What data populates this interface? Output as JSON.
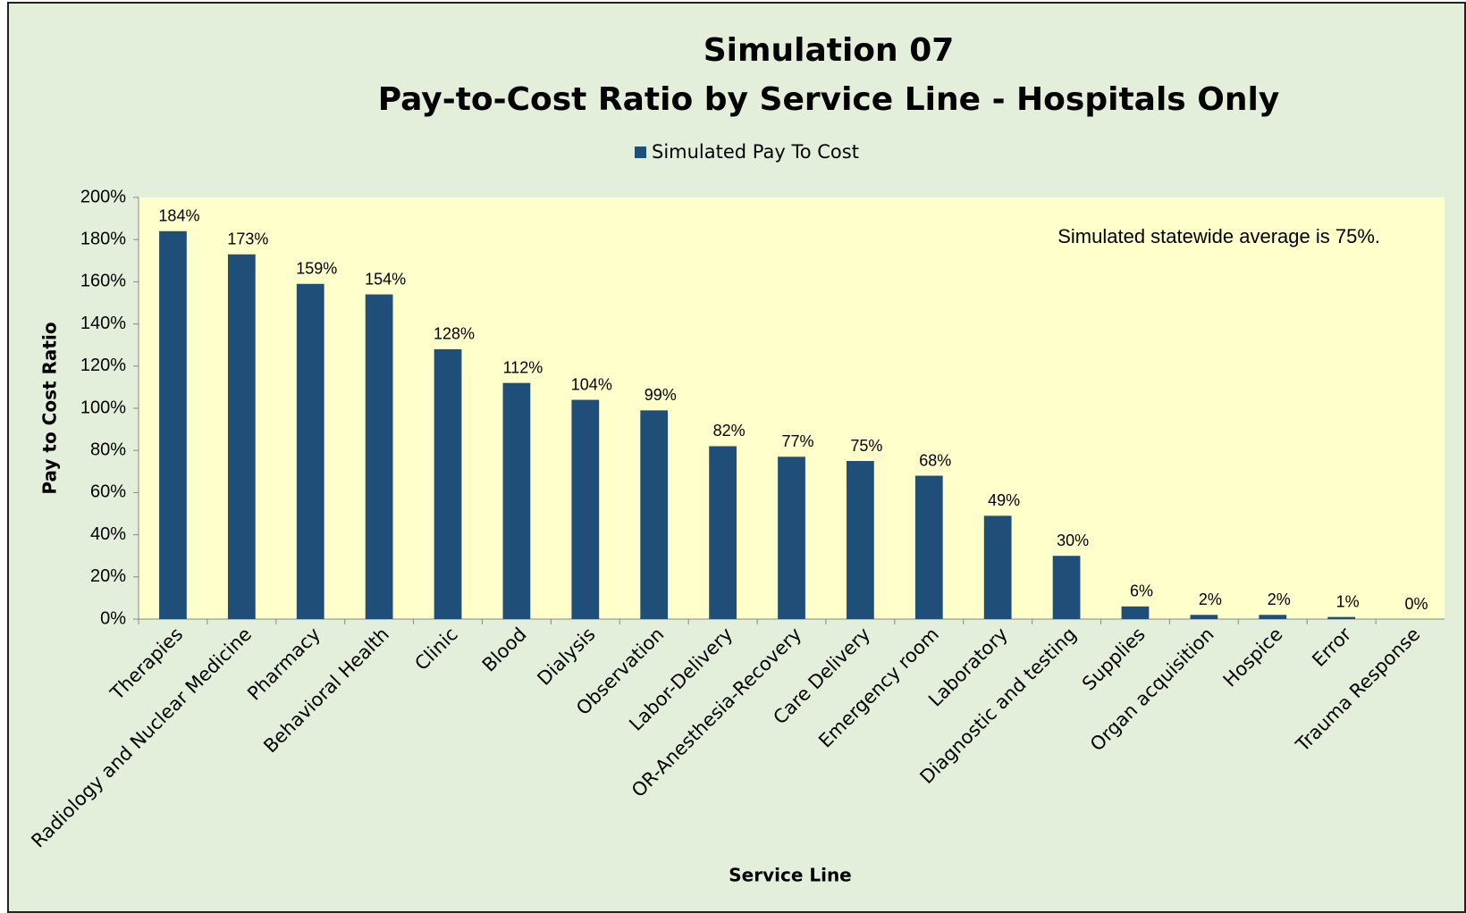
{
  "chart_data": {
    "type": "bar",
    "title": "Simulation 07",
    "subtitle": "Pay-to-Cost Ratio by Service Line - Hospitals Only",
    "x_label": "Service Line",
    "y_label": "Pay to Cost Ratio",
    "annotation": "Simulated statewide average is 75%.",
    "categories": [
      "Therapies",
      "Radiology and Nuclear Medicine",
      "Pharmacy",
      "Behavioral Health",
      "Clinic",
      "Blood",
      "Dialysis",
      "Observation",
      "Labor-Delivery",
      "OR-Anesthesia-Recovery",
      "Care Delivery",
      "Emergency room",
      "Laboratory",
      "Diagnostic and testing",
      "Supplies",
      "Organ acquisition",
      "Hospice",
      "Error",
      "Trauma Response"
    ],
    "series": [
      {
        "name": "Simulated Pay To Cost",
        "color": "#1f4e79",
        "values": [
          184,
          173,
          159,
          154,
          128,
          112,
          104,
          99,
          82,
          77,
          75,
          68,
          49,
          30,
          6,
          2,
          2,
          1,
          0
        ],
        "value_labels": [
          "184%",
          "173%",
          "159%",
          "154%",
          "128%",
          "112%",
          "104%",
          "99%",
          "82%",
          "77%",
          "75%",
          "68%",
          "49%",
          "30%",
          "6%",
          "2%",
          "2%",
          "1%",
          "0%"
        ]
      }
    ],
    "ylim": [
      0,
      200
    ],
    "yticks": [
      {
        "value": 0,
        "label": "0%"
      },
      {
        "value": 20,
        "label": "20%"
      },
      {
        "value": 40,
        "label": "40%"
      },
      {
        "value": 60,
        "label": "60%"
      },
      {
        "value": 80,
        "label": "80%"
      },
      {
        "value": 100,
        "label": "100%"
      },
      {
        "value": 120,
        "label": "120%"
      },
      {
        "value": 140,
        "label": "140%"
      },
      {
        "value": 160,
        "label": "160%"
      },
      {
        "value": 180,
        "label": "180%"
      },
      {
        "value": 200,
        "label": "200%"
      }
    ],
    "legend": "top",
    "grid": false
  }
}
